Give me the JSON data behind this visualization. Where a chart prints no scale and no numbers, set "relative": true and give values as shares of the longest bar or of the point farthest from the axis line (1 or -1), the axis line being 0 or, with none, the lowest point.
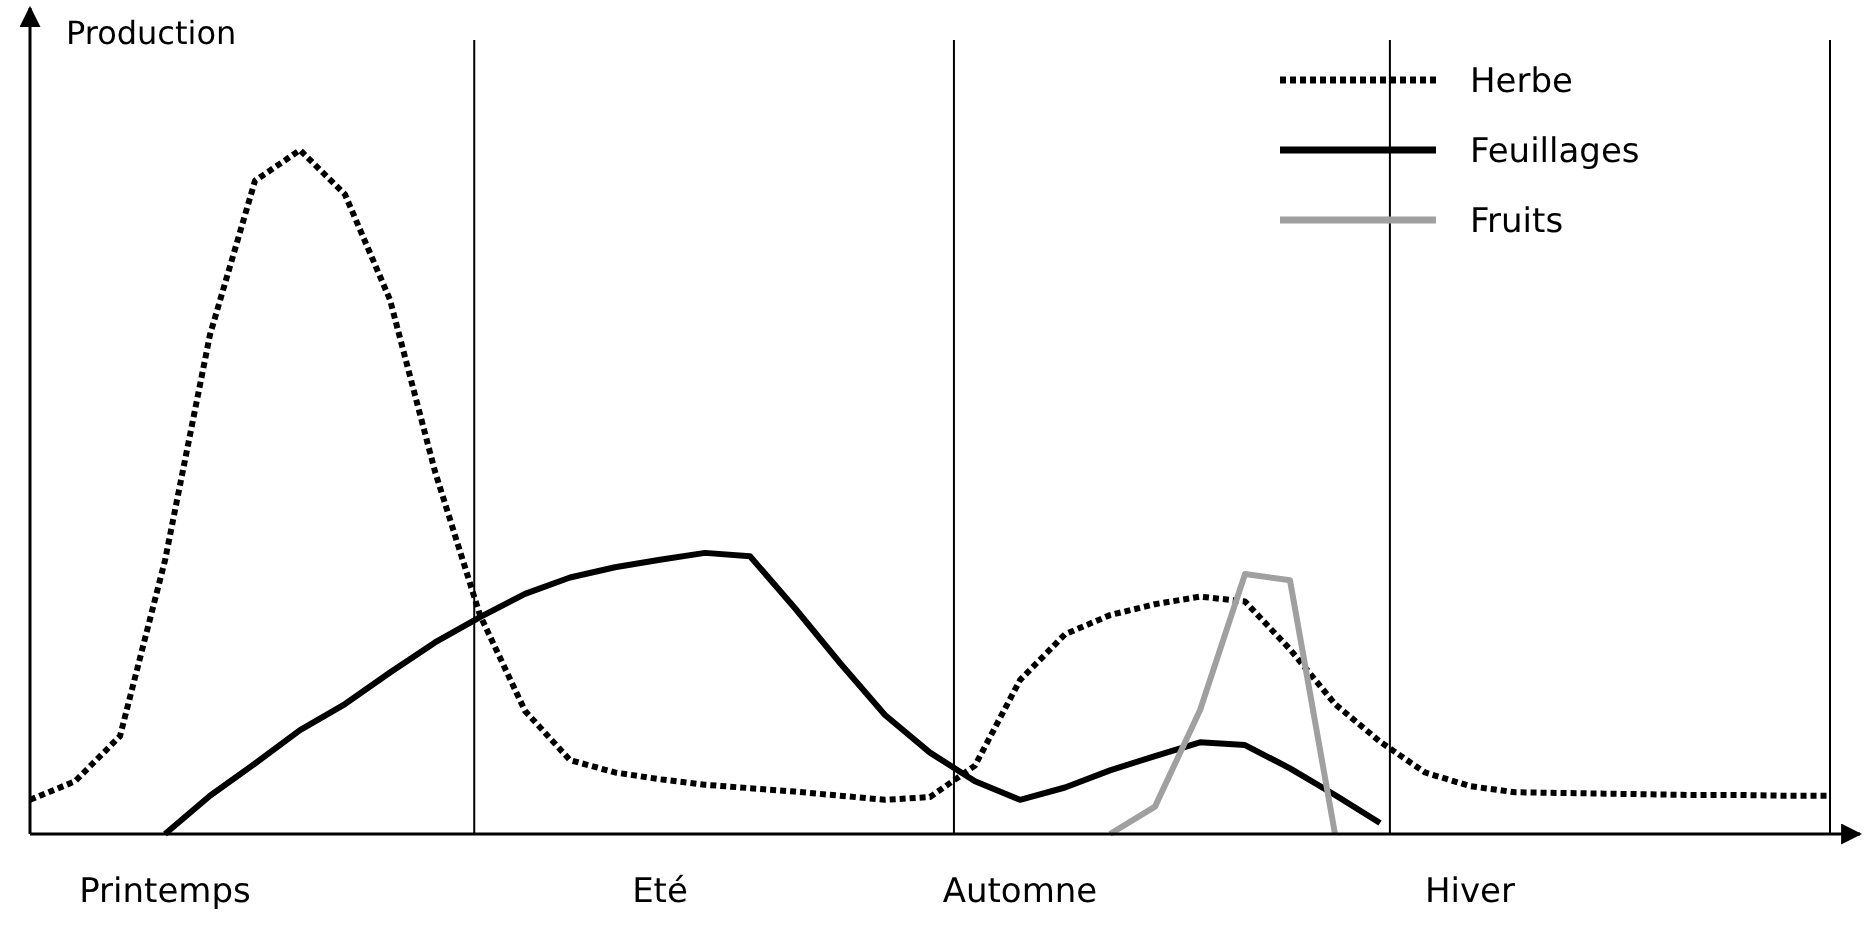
{
  "chart_data": {
    "type": "line",
    "relative": true,
    "ylabel": "Production",
    "categories": [
      null,
      null,
      null,
      "Printemps",
      null,
      null,
      null,
      null,
      null,
      null,
      null,
      null,
      null,
      null,
      "Eté",
      null,
      null,
      null,
      null,
      null,
      null,
      null,
      "Automne",
      null,
      null,
      null,
      null,
      null,
      null,
      null,
      null,
      null,
      "Hiver",
      null,
      null,
      null,
      null,
      null,
      null,
      null,
      null
    ],
    "legend": "top right",
    "series": [
      {
        "name": "Herbe",
        "color": "#000000",
        "line_style": "dotted",
        "values": [
          0.05,
          0.077,
          0.143,
          0.4,
          0.73,
          0.955,
          1,
          0.935,
          0.781,
          0.53,
          0.32,
          0.18,
          0.108,
          0.09,
          0.08,
          0.072,
          0.067,
          0.062,
          0.056,
          0.05,
          0.054,
          0.1,
          0.225,
          0.292,
          0.32,
          0.336,
          0.347,
          0.34,
          0.27,
          0.19,
          0.135,
          0.09,
          0.07,
          0.061,
          0.06,
          0.059,
          0.058,
          0.057,
          0.057,
          0.056,
          0.056
        ]
      },
      {
        "name": "Feuillages",
        "color": "#000000",
        "line_style": "solid",
        "values": [
          null,
          null,
          null,
          0,
          0.056,
          0.103,
          0.152,
          0.19,
          0.236,
          0.28,
          0.317,
          0.351,
          0.375,
          0.39,
          0.401,
          0.411,
          0.406,
          0.33,
          0.25,
          0.174,
          0.119,
          0.077,
          0.05,
          0.068,
          0.093,
          0.114,
          0.134,
          0.13,
          0.096,
          0.057,
          0.016,
          null,
          null,
          null,
          null,
          null,
          null,
          null,
          null,
          null,
          null
        ]
      },
      {
        "name": "Fruits",
        "color": "#a0a0a0",
        "line_style": "solid",
        "values": [
          null,
          null,
          null,
          null,
          null,
          null,
          null,
          null,
          null,
          null,
          null,
          null,
          null,
          null,
          null,
          null,
          null,
          null,
          null,
          null,
          null,
          null,
          null,
          null,
          0,
          0.04,
          0.181,
          0.38,
          0.371,
          0,
          null,
          null,
          null,
          null,
          null,
          null,
          null,
          null,
          null,
          null,
          null
        ]
      }
    ]
  }
}
